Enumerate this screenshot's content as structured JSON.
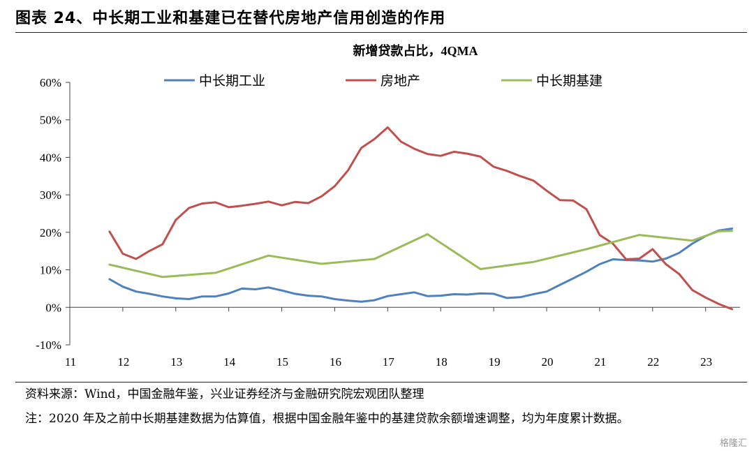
{
  "figure_title": "图表 24、中长期工业和基建已在替代房地产信用创造的作用",
  "source_text": "资料来源：Wind，中国金融年鉴，兴业证券经济与金融研究院宏观团队整理",
  "note_text": "注：2020 年及之前中长期基建数据为估算值，根据中国金融年鉴中的基建贷款余额增速调整，均为年度累计数据。",
  "watermark": "格隆汇",
  "colors": {
    "industry": "#4f81bd",
    "real_estate": "#c0504d",
    "infrastructure": "#9bbb59"
  },
  "chart_data": {
    "type": "line",
    "title": "新增贷款占比，4QMA",
    "xlabel": "",
    "ylabel": "",
    "xlim": [
      11,
      23.65
    ],
    "ylim": [
      -10,
      60
    ],
    "x_ticks": [
      "11",
      "12",
      "13",
      "14",
      "15",
      "16",
      "17",
      "18",
      "19",
      "20",
      "21",
      "22",
      "23"
    ],
    "y_ticks": [
      "-10%",
      "0%",
      "10%",
      "20%",
      "30%",
      "40%",
      "50%",
      "60%"
    ],
    "y_tick_values": [
      -10,
      0,
      10,
      20,
      30,
      40,
      50,
      60
    ],
    "grid": false,
    "legend_position": "top",
    "series": [
      {
        "name": "中长期工业",
        "color": "#4f81bd",
        "points": [
          [
            11.75,
            7.5
          ],
          [
            12.0,
            5.5
          ],
          [
            12.25,
            4.2
          ],
          [
            12.5,
            3.6
          ],
          [
            12.75,
            2.9
          ],
          [
            13.0,
            2.4
          ],
          [
            13.25,
            2.2
          ],
          [
            13.5,
            2.9
          ],
          [
            13.75,
            2.9
          ],
          [
            14.0,
            3.7
          ],
          [
            14.25,
            5.0
          ],
          [
            14.5,
            4.8
          ],
          [
            14.75,
            5.3
          ],
          [
            15.0,
            4.5
          ],
          [
            15.25,
            3.6
          ],
          [
            15.5,
            3.1
          ],
          [
            15.75,
            2.9
          ],
          [
            16.0,
            2.2
          ],
          [
            16.25,
            1.8
          ],
          [
            16.5,
            1.5
          ],
          [
            16.75,
            1.9
          ],
          [
            17.0,
            3.0
          ],
          [
            17.25,
            3.5
          ],
          [
            17.5,
            4.0
          ],
          [
            17.75,
            3.0
          ],
          [
            18.0,
            3.1
          ],
          [
            18.25,
            3.5
          ],
          [
            18.5,
            3.4
          ],
          [
            18.75,
            3.7
          ],
          [
            19.0,
            3.6
          ],
          [
            19.25,
            2.5
          ],
          [
            19.5,
            2.7
          ],
          [
            19.75,
            3.5
          ],
          [
            20.0,
            4.2
          ],
          [
            20.25,
            6.0
          ],
          [
            20.5,
            7.7
          ],
          [
            20.75,
            9.5
          ],
          [
            21.0,
            11.5
          ],
          [
            21.25,
            12.8
          ],
          [
            21.5,
            12.6
          ],
          [
            21.75,
            12.5
          ],
          [
            22.0,
            12.2
          ],
          [
            22.25,
            13.0
          ],
          [
            22.5,
            14.5
          ],
          [
            22.75,
            17.0
          ],
          [
            23.0,
            19.0
          ],
          [
            23.25,
            20.5
          ],
          [
            23.5,
            21.0
          ]
        ]
      },
      {
        "name": "房地产",
        "color": "#c0504d",
        "points": [
          [
            11.75,
            20.2
          ],
          [
            12.0,
            14.3
          ],
          [
            12.25,
            12.9
          ],
          [
            12.5,
            15.0
          ],
          [
            12.75,
            16.8
          ],
          [
            13.0,
            23.3
          ],
          [
            13.25,
            26.5
          ],
          [
            13.5,
            27.7
          ],
          [
            13.75,
            28.0
          ],
          [
            14.0,
            26.7
          ],
          [
            14.25,
            27.1
          ],
          [
            14.5,
            27.6
          ],
          [
            14.75,
            28.2
          ],
          [
            15.0,
            27.2
          ],
          [
            15.25,
            28.1
          ],
          [
            15.5,
            27.8
          ],
          [
            15.75,
            29.6
          ],
          [
            16.0,
            32.3
          ],
          [
            16.25,
            36.5
          ],
          [
            16.5,
            42.5
          ],
          [
            16.75,
            44.9
          ],
          [
            17.0,
            48.0
          ],
          [
            17.25,
            44.2
          ],
          [
            17.5,
            42.3
          ],
          [
            17.75,
            40.9
          ],
          [
            18.0,
            40.4
          ],
          [
            18.25,
            41.5
          ],
          [
            18.5,
            41.0
          ],
          [
            18.75,
            40.2
          ],
          [
            19.0,
            37.5
          ],
          [
            19.25,
            36.4
          ],
          [
            19.5,
            35.0
          ],
          [
            19.75,
            33.8
          ],
          [
            20.0,
            31.1
          ],
          [
            20.25,
            28.6
          ],
          [
            20.5,
            28.5
          ],
          [
            20.75,
            26.2
          ],
          [
            21.0,
            19.3
          ],
          [
            21.25,
            17.0
          ],
          [
            21.5,
            12.8
          ],
          [
            21.75,
            13.0
          ],
          [
            22.0,
            15.5
          ],
          [
            22.25,
            11.5
          ],
          [
            22.5,
            8.9
          ],
          [
            22.75,
            4.6
          ],
          [
            23.0,
            2.6
          ],
          [
            23.25,
            0.9
          ],
          [
            23.5,
            -0.5
          ]
        ]
      },
      {
        "name": "中长期基建",
        "color": "#9bbb59",
        "points": [
          [
            11.75,
            11.4
          ],
          [
            12.75,
            8.1
          ],
          [
            13.75,
            9.2
          ],
          [
            14.75,
            13.8
          ],
          [
            15.75,
            11.6
          ],
          [
            16.75,
            12.9
          ],
          [
            17.75,
            19.5
          ],
          [
            18.75,
            10.2
          ],
          [
            19.75,
            12.1
          ],
          [
            20.75,
            15.5
          ],
          [
            21.75,
            19.3
          ],
          [
            22.75,
            17.8
          ],
          [
            23.25,
            20.3
          ],
          [
            23.5,
            20.4
          ]
        ]
      }
    ]
  }
}
